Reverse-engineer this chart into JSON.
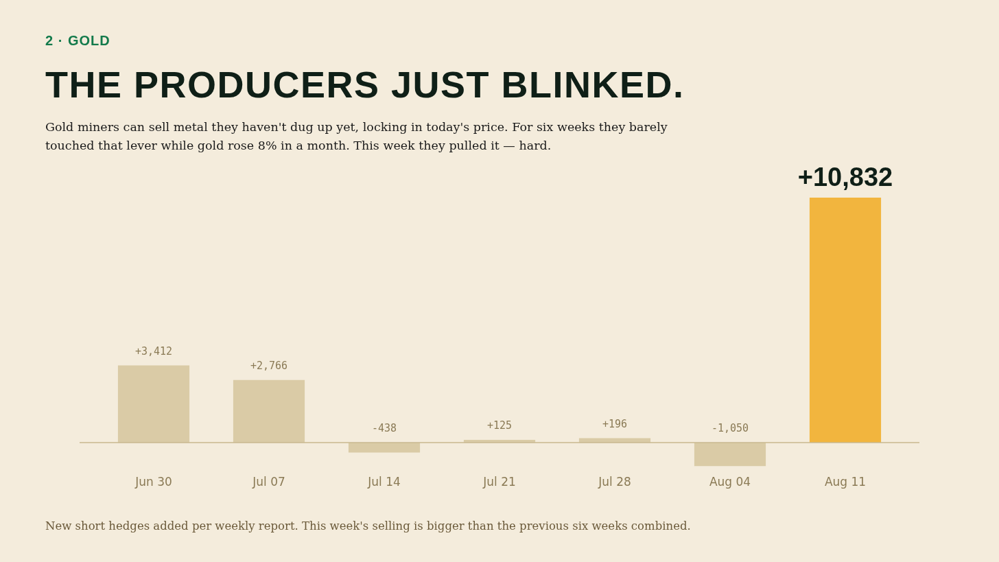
{
  "chart_data": {
    "type": "bar",
    "title": "THE PRODUCERS JUST BLINKED.",
    "subtitle": "Gold miners can sell metal they haven't dug up yet, locking in today's price. For six weeks they barely touched that lever while gold rose 8% in a month. This week they pulled it — hard.",
    "annotations": [
      "2 · GOLD",
      "New short hedges added per weekly report. This week's selling is bigger than the previous six weeks combined."
    ],
    "categories": [
      "Jun 30",
      "Jul 07",
      "Jul 14",
      "Jul 21",
      "Jul 28",
      "Aug 04",
      "Aug 11"
    ],
    "values": [
      3412,
      2766,
      -438,
      125,
      196,
      -1050,
      10832
    ],
    "value_labels": [
      "+3,412",
      "+2,766",
      "-438",
      "+125",
      "+196",
      "-1,050",
      "+10,832"
    ],
    "colors": [
      "#dacba6",
      "#dacba6",
      "#dacba6",
      "#dacba6",
      "#dacba6",
      "#dacba6",
      "#f2b53e"
    ],
    "ref_lines": [
      {
        "axis": "y",
        "value": 0,
        "color": "#c9b98f"
      }
    ],
    "grid": false,
    "legend": false
  }
}
